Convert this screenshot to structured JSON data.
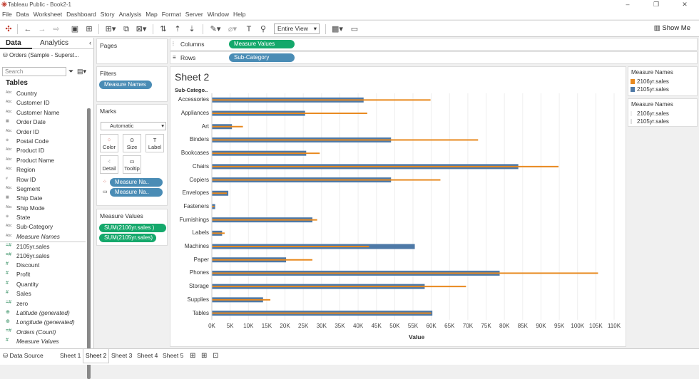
{
  "window": {
    "title": "Tableau Public - Book2-1",
    "controls": [
      "–",
      "❐",
      "✕"
    ]
  },
  "menu": [
    "File",
    "Data",
    "Worksheet",
    "Dashboard",
    "Story",
    "Analysis",
    "Map",
    "Format",
    "Server",
    "Window",
    "Help"
  ],
  "toolbar": {
    "view_mode": "Entire View",
    "show_me": "Show Me"
  },
  "data_pane": {
    "tab_data": "Data",
    "tab_analytics": "Analytics",
    "source": "Orders (Sample - Superst...",
    "search_placeholder": "Search",
    "tables_heading": "Tables",
    "dimensions": [
      {
        "icon": "Abc",
        "label": "Country"
      },
      {
        "icon": "Abc",
        "label": "Customer ID"
      },
      {
        "icon": "Abc",
        "label": "Customer Name"
      },
      {
        "icon": "▦",
        "label": "Order Date"
      },
      {
        "icon": "Abc",
        "label": "Order ID"
      },
      {
        "icon": "⊕",
        "label": "Postal Code"
      },
      {
        "icon": "Abc",
        "label": "Product ID"
      },
      {
        "icon": "Abc",
        "label": "Product Name"
      },
      {
        "icon": "Abc",
        "label": "Region"
      },
      {
        "icon": "#",
        "label": "Row ID"
      },
      {
        "icon": "Abc",
        "label": "Segment"
      },
      {
        "icon": "▦",
        "label": "Ship Date"
      },
      {
        "icon": "Abc",
        "label": "Ship Mode"
      },
      {
        "icon": "⊕",
        "label": "State"
      },
      {
        "icon": "Abc",
        "label": "Sub-Category"
      },
      {
        "icon": "Abc",
        "label": "Measure Names"
      }
    ],
    "measures": [
      {
        "icon": "=#",
        "label": "2105yr.sales"
      },
      {
        "icon": "=#",
        "label": "2106yr.sales"
      },
      {
        "icon": "#",
        "label": "Discount"
      },
      {
        "icon": "#",
        "label": "Profit"
      },
      {
        "icon": "#",
        "label": "Quantity"
      },
      {
        "icon": "#",
        "label": "Sales"
      },
      {
        "icon": "=#",
        "label": "zero"
      },
      {
        "icon": "⊕",
        "label": "Latitude (generated)"
      },
      {
        "icon": "⊕",
        "label": "Longitude (generated)"
      },
      {
        "icon": "=#",
        "label": "Orders (Count)"
      },
      {
        "icon": "#",
        "label": "Measure Values"
      }
    ]
  },
  "cards": {
    "pages": "Pages",
    "filters": "Filters",
    "filter_pill": "Measure Names",
    "marks": "Marks",
    "mark_type": "Automatic",
    "mark_buttons": [
      "Color",
      "Size",
      "Label",
      "Detail",
      "Tooltip"
    ],
    "mark_pills": [
      "Measure Na..",
      "Measure Na.."
    ],
    "measure_values": "Measure Values",
    "mv_pills": [
      "SUM(2106yr.sales )",
      "SUM(2105yr.sales)"
    ]
  },
  "shelves": {
    "columns_label": "Columns",
    "columns_pill": "Measure Values",
    "rows_label": "Rows",
    "rows_pill": "Sub-Category"
  },
  "sheet": {
    "title": "Sheet 2",
    "column_header": "Sub-Catego.."
  },
  "colors": {
    "orange": "#e8891e",
    "blue": "#4e79a7"
  },
  "chart_data": {
    "type": "bar",
    "orientation": "horizontal",
    "categories": [
      "Accessories",
      "Appliances",
      "Art",
      "Binders",
      "Bookcases",
      "Chairs",
      "Copiers",
      "Envelopes",
      "Fasteners",
      "Furnishings",
      "Labels",
      "Machines",
      "Paper",
      "Phones",
      "Storage",
      "Supplies",
      "Tables"
    ],
    "series": [
      {
        "name": "2106yr.sales",
        "values": [
          59800,
          42500,
          8500,
          72800,
          29500,
          94800,
          62500,
          4100,
          700,
          28800,
          3500,
          43000,
          27500,
          105600,
          69500,
          16000,
          60000
        ]
      },
      {
        "name": "2105yr.sales",
        "values": [
          41500,
          25500,
          5500,
          49000,
          25800,
          83800,
          49000,
          4500,
          900,
          27500,
          2800,
          55500,
          20300,
          78700,
          58200,
          14000,
          60300
        ]
      }
    ],
    "xlabel": "Value",
    "xlim": [
      0,
      110000
    ],
    "xticks": [
      "0K",
      "5K",
      "10K",
      "15K",
      "20K",
      "25K",
      "30K",
      "35K",
      "40K",
      "45K",
      "50K",
      "55K",
      "60K",
      "65K",
      "70K",
      "75K",
      "80K",
      "85K",
      "90K",
      "95K",
      "100K",
      "105K",
      "110K"
    ],
    "grid": true,
    "legend": {
      "title": "Measure Names",
      "position": "right",
      "entries": [
        "2106yr.sales",
        "2105yr.sales"
      ]
    }
  },
  "legend2": {
    "title": "Measure Names",
    "entries": [
      "2106yr.sales",
      "2105yr.sales"
    ]
  },
  "bottom_tabs": [
    "Data Source",
    "Sheet 1",
    "Sheet 2",
    "Sheet 3",
    "Sheet 4",
    "Sheet 5"
  ]
}
